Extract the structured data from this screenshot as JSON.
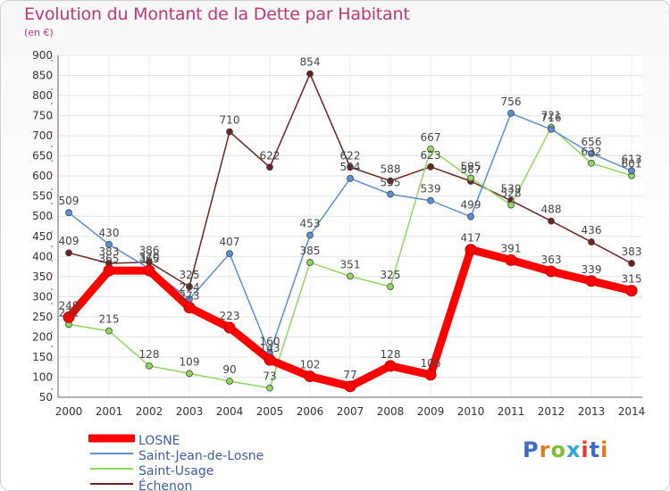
{
  "header": {
    "title": "Evolution du Montant de la Dette par Habitant",
    "subtitle": "(en €)"
  },
  "logo": {
    "text": "Proxiti",
    "colors": [
      "#3d6bc8",
      "#e87a1e",
      "#7cbf2c",
      "#2fa6d8",
      "#e63c2e"
    ]
  },
  "chart_data": {
    "type": "line",
    "title": "Evolution du Montant de la Dette par Habitant",
    "subtitle": "(en €)",
    "xlabel": "",
    "ylabel": "",
    "categories": [
      "2000",
      "2001",
      "2002",
      "2003",
      "2004",
      "2005",
      "2006",
      "2007",
      "2008",
      "2009",
      "2010",
      "2011",
      "2012",
      "2013",
      "2014"
    ],
    "yticks": [
      50,
      100,
      150,
      200,
      250,
      300,
      350,
      400,
      450,
      500,
      550,
      600,
      650,
      700,
      750,
      800,
      850,
      900
    ],
    "ylim": [
      50,
      900
    ],
    "grid": true,
    "legend_position": "bottom-left",
    "series": [
      {
        "name": "LOSNE",
        "color": "#ff0000",
        "values": [
          249,
          365,
          365,
          273,
          223,
          143,
          102,
          77,
          128,
          106,
          417,
          391,
          363,
          339,
          315
        ],
        "point_labels": [
          "249",
          "365",
          "365",
          "273",
          "223",
          "143",
          "102",
          "77",
          "128",
          "106",
          "417",
          "391",
          "363",
          "339",
          "315"
        ]
      },
      {
        "name": "Saint-Jean-de-Losne",
        "color": "#5b8fd0",
        "values": [
          509,
          430,
          370,
          294,
          407,
          160,
          453,
          594,
          555,
          539,
          499,
          756,
          716,
          656,
          613
        ],
        "point_labels": [
          "509",
          "430",
          "370",
          "294",
          "407",
          "160",
          "453",
          "594",
          "555",
          "539",
          "499",
          "756",
          "716",
          "656",
          "613"
        ]
      },
      {
        "name": "Saint-Usage",
        "color": "#8fd660",
        "values": [
          231,
          215,
          128,
          109,
          90,
          73,
          385,
          351,
          325,
          667,
          595,
          528,
          721,
          632,
          601
        ],
        "point_labels": [
          "231",
          "215",
          "128",
          "109",
          "90",
          "73",
          "385",
          "351",
          "325",
          "667",
          "595",
          "528",
          "721",
          "632",
          "601"
        ]
      },
      {
        "name": "Échenon",
        "color": "#6e2121",
        "values": [
          409,
          383,
          386,
          325,
          710,
          622,
          854,
          622,
          588,
          623,
          587,
          539,
          488,
          436,
          383
        ],
        "point_labels": [
          "409",
          "383",
          "386",
          "325",
          "710",
          "622",
          "854",
          "622",
          "588",
          "623",
          "587",
          "539",
          "488",
          "436",
          "383"
        ]
      }
    ]
  }
}
